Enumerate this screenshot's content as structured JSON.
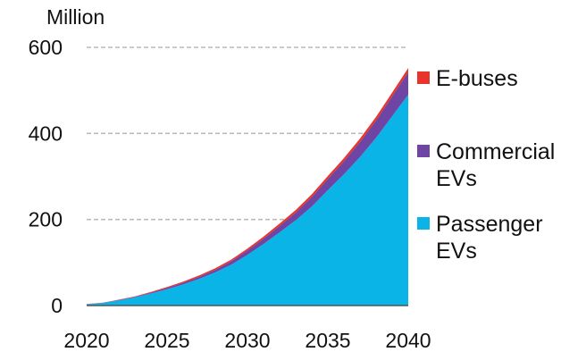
{
  "chart_data": {
    "type": "area",
    "stacked": true,
    "unit_label": "Million",
    "x": [
      2020,
      2021,
      2022,
      2023,
      2024,
      2025,
      2026,
      2027,
      2028,
      2029,
      2030,
      2031,
      2032,
      2033,
      2034,
      2035,
      2036,
      2037,
      2038,
      2039,
      2040
    ],
    "xticks": [
      2020,
      2025,
      2030,
      2035,
      2040
    ],
    "yticks": [
      0,
      200,
      400,
      600
    ],
    "xlim": [
      2020,
      2040
    ],
    "ylim": [
      0,
      600
    ],
    "grid": "horizontal-dashed",
    "legend_position": "right",
    "series": [
      {
        "name": "Passenger EVs",
        "color": "#0bb4e6",
        "values": [
          3,
          6,
          12,
          19,
          28,
          38,
          49,
          62,
          77,
          95,
          118,
          143,
          170,
          198,
          230,
          268,
          305,
          345,
          390,
          440,
          490
        ]
      },
      {
        "name": "Commercial EVs",
        "color": "#6e44a4",
        "values": [
          0.2,
          0.4,
          0.8,
          1.2,
          2,
          3,
          4,
          5,
          6,
          8,
          10,
          12,
          15,
          18,
          22,
          26,
          30,
          35,
          40,
          46,
          52
        ]
      },
      {
        "name": "E-buses",
        "color": "#e8342b",
        "values": [
          0.3,
          0.5,
          0.8,
          1,
          1.5,
          2,
          2.5,
          3,
          3.5,
          4,
          4.5,
          5,
          5.5,
          6,
          6.5,
          7,
          7.5,
          8,
          8.5,
          9,
          10
        ]
      }
    ],
    "legend": [
      {
        "lines": [
          "E-buses"
        ],
        "color": "#e8342b"
      },
      {
        "lines": [
          "Commercial",
          "EVs"
        ],
        "color": "#6e44a4"
      },
      {
        "lines": [
          "Passenger",
          "EVs"
        ],
        "color": "#0bb4e6"
      }
    ]
  }
}
